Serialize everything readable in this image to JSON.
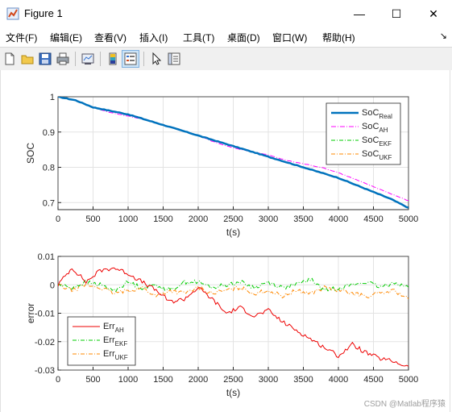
{
  "window": {
    "title": "Figure 1",
    "controls": {
      "minimize": "—",
      "maximize": "☐",
      "close": "✕"
    }
  },
  "menu": {
    "items": [
      "文件(F)",
      "编辑(E)",
      "查看(V)",
      "插入(I)",
      "工具(T)",
      "桌面(D)",
      "窗口(W)",
      "帮助(H)"
    ],
    "overflow_glyph": "↘"
  },
  "toolbar": {
    "icons": [
      "new-figure-icon",
      "open-file-icon",
      "save-icon",
      "print-icon",
      "link-plot-icon",
      "colorbar-icon",
      "legend-icon",
      "pointer-icon",
      "property-inspector-icon"
    ],
    "active": "legend-icon"
  },
  "chart_data": [
    {
      "type": "line",
      "title": "",
      "xlabel": "t(s)",
      "ylabel": "SOC",
      "xlim": [
        0,
        5000
      ],
      "ylim": [
        0.68,
        1.0
      ],
      "xticks": [
        "0",
        "500",
        "1000",
        "1500",
        "2000",
        "2500",
        "3000",
        "3500",
        "4000",
        "4500",
        "5000"
      ],
      "yticks": [
        "0.7",
        "0.8",
        "0.9",
        "1"
      ],
      "grid": true,
      "legend_position": "top-right",
      "x": [
        0,
        250,
        500,
        750,
        1000,
        1250,
        1500,
        1750,
        2000,
        2250,
        2500,
        2750,
        3000,
        3250,
        3500,
        3750,
        4000,
        4250,
        4500,
        4750,
        5000
      ],
      "series": [
        {
          "name": "SoC",
          "sub": "Real",
          "color": "#0072bd",
          "dash": "",
          "width": 2.5,
          "values": [
            1.0,
            0.99,
            0.97,
            0.96,
            0.95,
            0.935,
            0.92,
            0.905,
            0.89,
            0.875,
            0.86,
            0.845,
            0.83,
            0.815,
            0.8,
            0.785,
            0.77,
            0.75,
            0.73,
            0.71,
            0.685
          ]
        },
        {
          "name": "SoC",
          "sub": "AH",
          "color": "#ff00ff",
          "dash": "6,2,1,2",
          "width": 1,
          "values": [
            1.0,
            0.99,
            0.97,
            0.955,
            0.945,
            0.935,
            0.92,
            0.905,
            0.89,
            0.87,
            0.855,
            0.845,
            0.835,
            0.82,
            0.81,
            0.8,
            0.785,
            0.765,
            0.745,
            0.725,
            0.705
          ]
        },
        {
          "name": "SoC",
          "sub": "EKF",
          "color": "#00cc00",
          "dash": "5,2,1,2",
          "width": 1,
          "values": [
            1.0,
            0.99,
            0.97,
            0.96,
            0.95,
            0.935,
            0.92,
            0.905,
            0.89,
            0.875,
            0.86,
            0.845,
            0.83,
            0.815,
            0.8,
            0.785,
            0.77,
            0.75,
            0.73,
            0.71,
            0.685
          ]
        },
        {
          "name": "SoC",
          "sub": "UKF",
          "color": "#ff8800",
          "dash": "5,2,1,2",
          "width": 1,
          "values": [
            1.0,
            0.99,
            0.97,
            0.96,
            0.95,
            0.935,
            0.92,
            0.905,
            0.89,
            0.875,
            0.86,
            0.845,
            0.83,
            0.815,
            0.8,
            0.785,
            0.77,
            0.75,
            0.73,
            0.71,
            0.686
          ]
        }
      ]
    },
    {
      "type": "line",
      "title": "",
      "xlabel": "t(s)",
      "ylabel": "error",
      "xlim": [
        0,
        5000
      ],
      "ylim": [
        -0.03,
        0.01
      ],
      "xticks": [
        "0",
        "500",
        "1000",
        "1500",
        "2000",
        "2500",
        "3000",
        "3500",
        "4000",
        "4500",
        "5000"
      ],
      "yticks": [
        "-0.03",
        "-0.02",
        "-0.01",
        "0",
        "0.01"
      ],
      "grid": true,
      "legend_position": "bottom-left",
      "x": [
        0,
        200,
        400,
        600,
        800,
        1000,
        1200,
        1400,
        1600,
        1800,
        2000,
        2200,
        2400,
        2600,
        2800,
        3000,
        3200,
        3400,
        3600,
        3800,
        4000,
        4200,
        4400,
        4600,
        4800,
        5000
      ],
      "series": [
        {
          "name": "Err",
          "sub": "AH",
          "color": "#ee0000",
          "dash": "",
          "width": 1,
          "values": [
            0,
            0.006,
            0.001,
            0.005,
            0.006,
            0.004,
            0.001,
            -0.002,
            -0.006,
            -0.005,
            -0.001,
            -0.005,
            -0.01,
            -0.008,
            -0.011,
            -0.009,
            -0.013,
            -0.016,
            -0.019,
            -0.022,
            -0.025,
            -0.021,
            -0.024,
            -0.026,
            -0.027,
            -0.029
          ]
        },
        {
          "name": "Err",
          "sub": "EKF",
          "color": "#00cc00",
          "dash": "5,2,1,2",
          "width": 1,
          "values": [
            0,
            -0.001,
            0.001,
            0,
            -0.002,
            0.001,
            -0.001,
            0,
            -0.002,
            0.001,
            0.001,
            -0.001,
            0,
            0.001,
            -0.001,
            0.001,
            -0.001,
            0,
            0.002,
            -0.002,
            -0.001,
            0,
            0.001,
            -0.001,
            0.001,
            -0.001
          ]
        },
        {
          "name": "Err",
          "sub": "UKF",
          "color": "#ff8800",
          "dash": "5,2,1,2",
          "width": 1,
          "values": [
            0,
            -0.002,
            0,
            -0.001,
            -0.003,
            -0.002,
            -0.001,
            -0.004,
            -0.002,
            -0.003,
            -0.001,
            -0.003,
            -0.002,
            -0.001,
            -0.003,
            -0.002,
            -0.004,
            -0.002,
            -0.003,
            -0.001,
            -0.002,
            -0.003,
            -0.004,
            -0.003,
            -0.002,
            -0.005
          ]
        }
      ]
    }
  ],
  "watermark": "CSDN @Matlab程序猿"
}
